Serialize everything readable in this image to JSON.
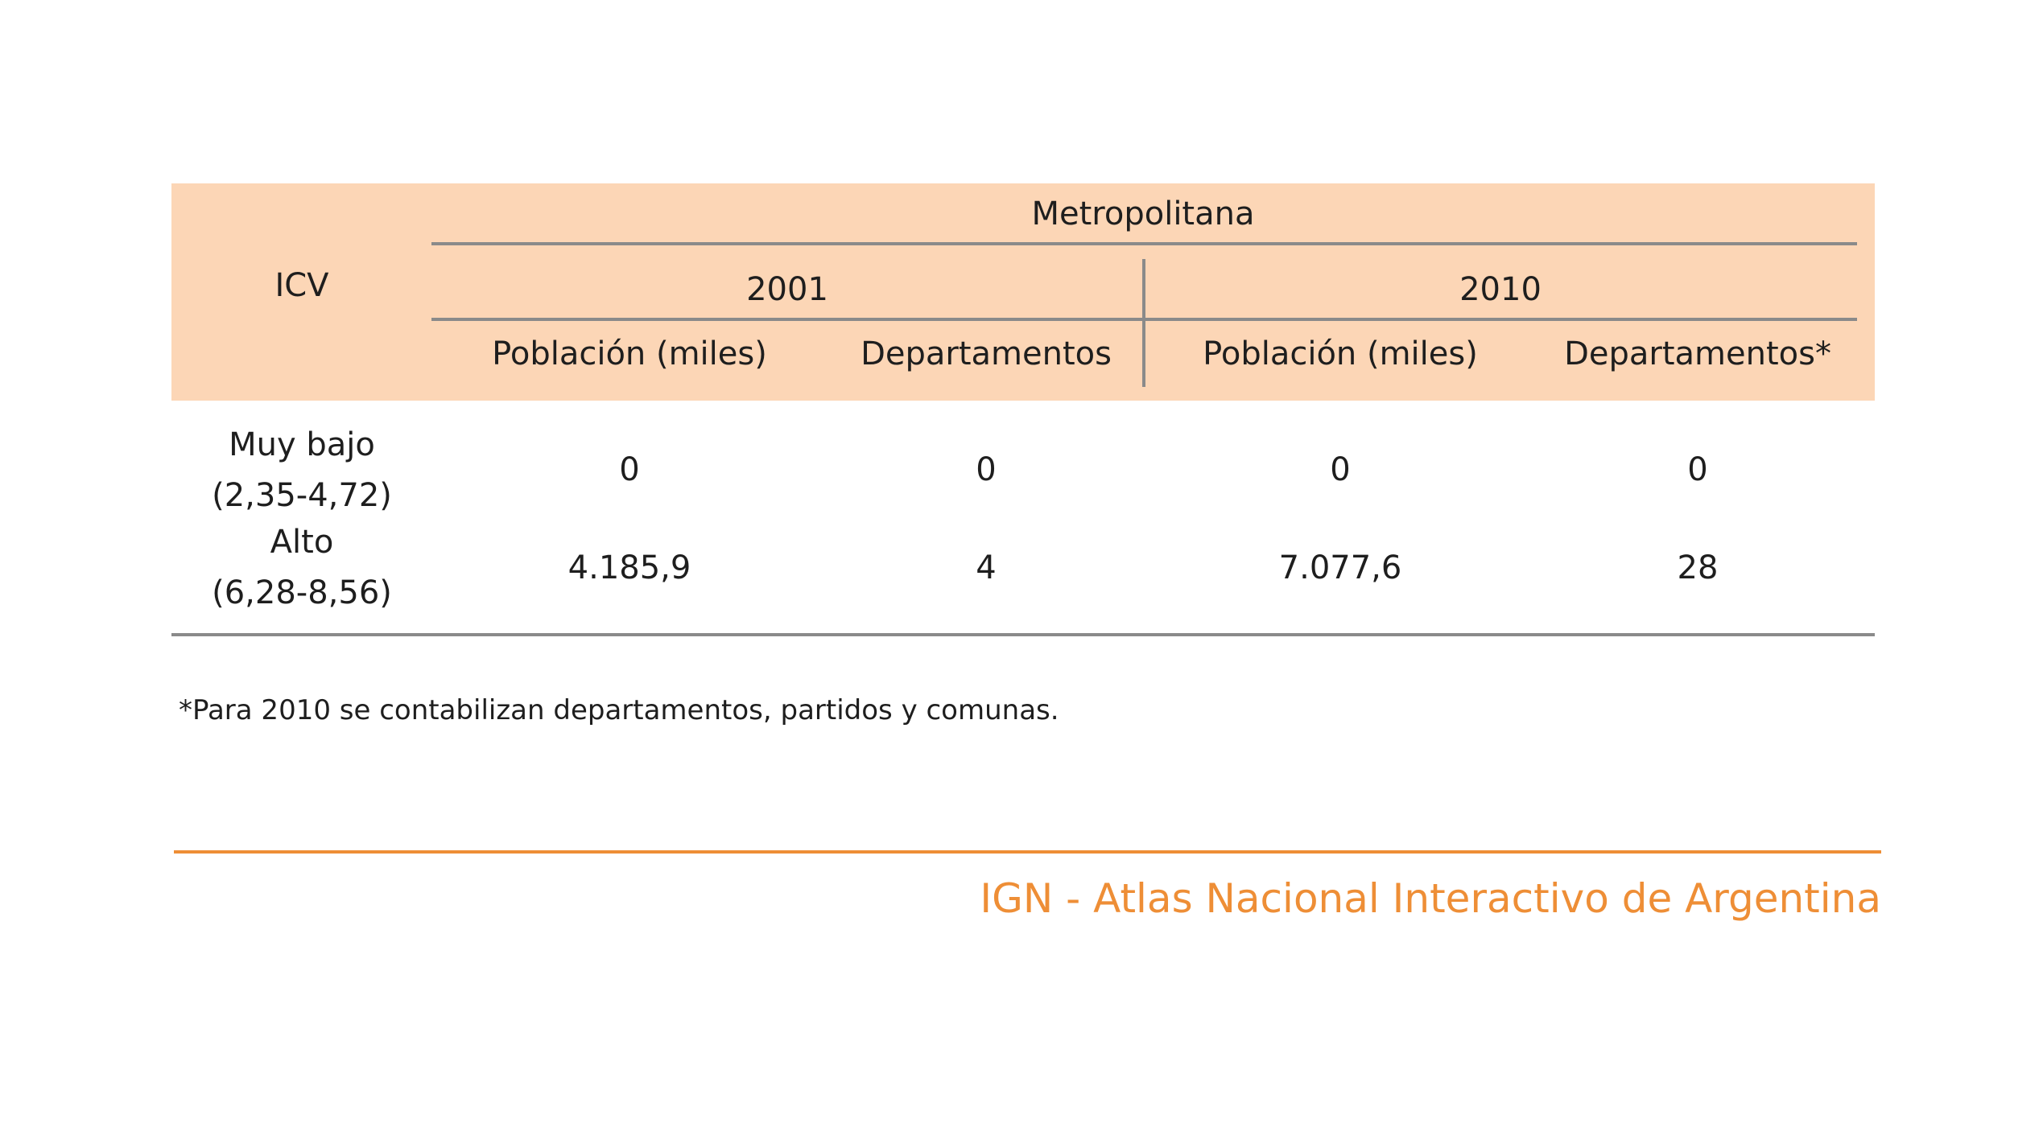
{
  "table": {
    "header": {
      "row_label": "ICV",
      "group": "Metropolitana",
      "years": [
        "2001",
        "2010"
      ],
      "columns": [
        "Población (miles)",
        "Departamentos",
        "Población (miles)",
        "Departamentos*"
      ]
    },
    "rows": [
      {
        "label_line1": "Muy bajo",
        "label_line2": "(2,35-4,72)",
        "values": [
          "0",
          "0",
          "0",
          "0"
        ]
      },
      {
        "label_line1": "Alto",
        "label_line2": "(6,28-8,56)",
        "values": [
          "4.185,9",
          "4",
          "7.077,6",
          "28"
        ]
      }
    ],
    "footnote": "*Para 2010 se contabilizan departamentos, partidos y comunas."
  },
  "footer": {
    "brand": "IGN - Atlas Nacional Interactivo de Argentina"
  },
  "colors": {
    "header_background": "#fcd6b6",
    "accent": "#ee8e36",
    "rule": "#8a8a8a"
  }
}
